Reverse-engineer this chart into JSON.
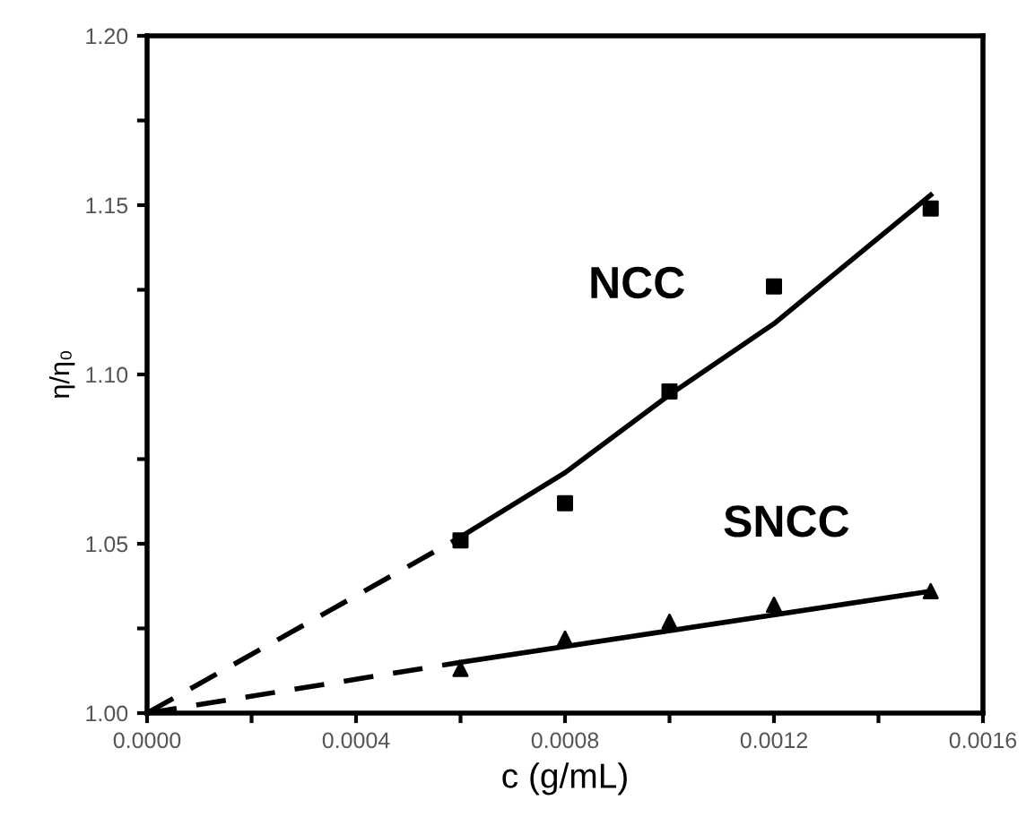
{
  "chart_data": {
    "type": "scatter",
    "xlabel": "c (g/mL)",
    "ylabel": "η/η₀",
    "xlim": [
      0,
      0.0016
    ],
    "ylim": [
      1.0,
      1.2
    ],
    "xticks": [
      {
        "value": 0,
        "label": "0.0000"
      },
      {
        "value": 0.0002,
        "label": null
      },
      {
        "value": 0.0004,
        "label": "0.0004"
      },
      {
        "value": 0.0006,
        "label": null
      },
      {
        "value": 0.0008,
        "label": "0.0008"
      },
      {
        "value": 0.001,
        "label": null
      },
      {
        "value": 0.0012,
        "label": "0.0012"
      },
      {
        "value": 0.0014,
        "label": null
      },
      {
        "value": 0.0016,
        "label": "0.0016"
      }
    ],
    "yticks": [
      {
        "value": 1.0,
        "label": "1.00"
      },
      {
        "value": 1.025,
        "label": null
      },
      {
        "value": 1.05,
        "label": "1.05"
      },
      {
        "value": 1.075,
        "label": null
      },
      {
        "value": 1.1,
        "label": "1.10"
      },
      {
        "value": 1.125,
        "label": null
      },
      {
        "value": 1.15,
        "label": "1.15"
      },
      {
        "value": 1.175,
        "label": null
      },
      {
        "value": 1.2,
        "label": "1.20"
      }
    ],
    "grid": false,
    "series": [
      {
        "type": "line",
        "line_style": "dashed",
        "marker": "none",
        "color": "#000000",
        "x": [
          0,
          0.0006
        ],
        "values": [
          1.0,
          1.052
        ]
      },
      {
        "type": "line",
        "line_style": "solid",
        "marker": "none",
        "color": "#000000",
        "x": [
          0.0006,
          0.0008,
          0.001,
          0.0012,
          0.0015
        ],
        "values": [
          1.052,
          1.071,
          1.094,
          1.115,
          1.153
        ]
      },
      {
        "type": "line",
        "line_style": "dashed",
        "marker": "none",
        "color": "#000000",
        "x": [
          0,
          0.0006
        ],
        "values": [
          1.0,
          1.015
        ]
      },
      {
        "type": "line",
        "line_style": "solid",
        "marker": "none",
        "color": "#000000",
        "x": [
          0.0006,
          0.0015
        ],
        "values": [
          1.015,
          1.036
        ]
      },
      {
        "name": "NCC",
        "marker": "square",
        "color": "#000000",
        "x": [
          0.0006,
          0.0008,
          0.001,
          0.0012,
          0.0015
        ],
        "values": [
          1.051,
          1.062,
          1.095,
          1.126,
          1.149
        ]
      },
      {
        "name": "SNCC",
        "marker": "triangle",
        "color": "#000000",
        "x": [
          0.0006,
          0.0008,
          0.001,
          0.0012,
          0.0015
        ],
        "values": [
          1.013,
          1.022,
          1.027,
          1.032,
          1.036
        ]
      }
    ]
  }
}
